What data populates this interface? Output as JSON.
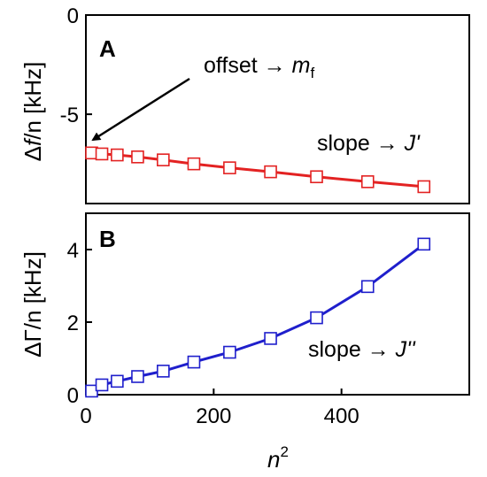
{
  "chart_data": [
    {
      "type": "line",
      "panel_label": "A",
      "ylabel_symbol": "Δ",
      "ylabel_var": "f",
      "ylabel_rest": "/n [kHz]",
      "xlim": [
        0,
        600
      ],
      "ylim": [
        -9.5,
        0
      ],
      "yticks": [
        "0",
        "-5"
      ],
      "ytick_values": [
        0,
        -5
      ],
      "grid": false,
      "series": [
        {
          "color": "#e32222",
          "marker": "open-square",
          "x": [
            9,
            25,
            49,
            81,
            121,
            169,
            225,
            289,
            361,
            441,
            529
          ],
          "y": [
            -6.95,
            -7.0,
            -7.05,
            -7.15,
            -7.3,
            -7.5,
            -7.7,
            -7.9,
            -8.15,
            -8.4,
            -8.65
          ]
        }
      ],
      "annotations": [
        {
          "text_main": "offset",
          "arrow": "→",
          "var": "m",
          "sub": "f",
          "points_to": [
            9,
            -6.95
          ]
        },
        {
          "text_main": "slope",
          "arrow": "→",
          "var": "J'"
        }
      ]
    },
    {
      "type": "line",
      "panel_label": "B",
      "ylabel_symbol": "ΔΓ",
      "ylabel_rest": "/n [kHz]",
      "xlabel": "n",
      "xlabel_sup": "2",
      "xlim": [
        0,
        600
      ],
      "ylim": [
        0,
        5
      ],
      "xticks": [
        "0",
        "200",
        "400"
      ],
      "xtick_values": [
        0,
        200,
        400
      ],
      "yticks": [
        "0",
        "2",
        "4"
      ],
      "ytick_values": [
        0,
        2,
        4
      ],
      "grid": false,
      "series": [
        {
          "color": "#1f1fcc",
          "marker": "open-square",
          "x": [
            9,
            25,
            49,
            81,
            121,
            169,
            225,
            289,
            361,
            441,
            529
          ],
          "y": [
            0.1,
            0.27,
            0.37,
            0.5,
            0.65,
            0.9,
            1.17,
            1.55,
            2.12,
            2.98,
            4.15
          ]
        }
      ],
      "annotations": [
        {
          "text_main": "slope",
          "arrow": "→",
          "var": "J''"
        }
      ]
    }
  ]
}
